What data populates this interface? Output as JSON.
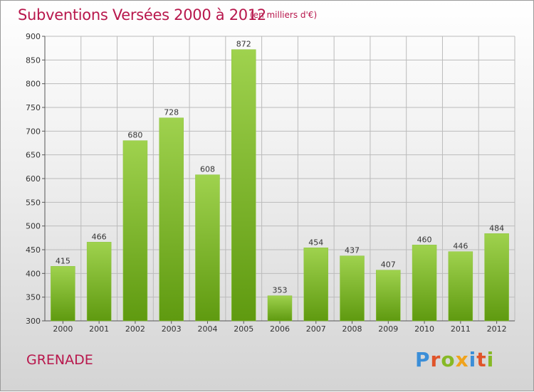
{
  "header": {
    "title": "Subventions Versées 2000 à 2012",
    "unit": "(en milliers d'€)"
  },
  "footer": {
    "place": "GRENADE",
    "logo": "Proxiti"
  },
  "colors": {
    "title": "#b8174c",
    "bar_light": "#9fd24e",
    "bar_dark": "#5f9a10",
    "grid": "#bbbbbb"
  },
  "chart_data": {
    "type": "bar",
    "title": "Subventions Versées 2000 à 2012",
    "subtitle": "(en milliers d'€)",
    "categories": [
      "2000",
      "2001",
      "2002",
      "2003",
      "2004",
      "2005",
      "2006",
      "2007",
      "2008",
      "2009",
      "2010",
      "2011",
      "2012"
    ],
    "values": [
      415,
      466,
      680,
      728,
      608,
      872,
      353,
      454,
      437,
      407,
      460,
      446,
      484
    ],
    "ylim": [
      300,
      900
    ],
    "yticks": [
      300,
      350,
      400,
      450,
      500,
      550,
      600,
      650,
      700,
      750,
      800,
      850,
      900
    ],
    "grid": true,
    "data_labels": true,
    "xlabel": "",
    "ylabel": ""
  }
}
